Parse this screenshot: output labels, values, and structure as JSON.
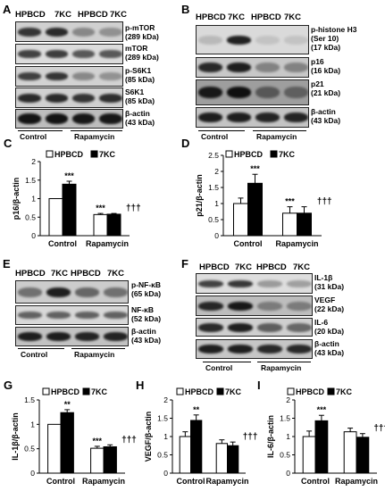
{
  "lane_headers": [
    "HPBCD",
    "7KC",
    "HPBCD",
    "7KC"
  ],
  "group_labels": [
    "Control",
    "Rapamycin"
  ],
  "panels": {
    "A": {
      "letter": "A",
      "labels": [
        "p-mTOR\n(289 kDa)",
        "mTOR\n(289 kDa)",
        "p-S6K1\n(85 kDa)",
        "S6K1\n(85 kDa)",
        "β-actin\n(43 kDa)"
      ]
    },
    "B": {
      "letter": "B",
      "labels": [
        "p-histone H3\n(Ser 10)\n(17 kDa)",
        "p16\n(16 kDa)",
        "p21\n(21 kDa)",
        "β-actin\n(43 kDa)"
      ]
    },
    "E": {
      "letter": "E",
      "labels": [
        "p-NF-κB\n(65 kDa)",
        "NF-κB\n(52 kDa)",
        "β-actin\n(43 kDa)"
      ]
    },
    "F": {
      "letter": "F",
      "labels": [
        "IL-1β\n(31 kDa)",
        "VEGF\n(22 kDa)",
        "IL-6\n(20 kDa)",
        "β-actin\n(43 kDa)"
      ]
    }
  },
  "chart_data": [
    {
      "id": "C",
      "letter": "C",
      "type": "bar",
      "ylabel": "p16/β-actin",
      "ylim": [
        0,
        2
      ],
      "yticks": [
        "0",
        "0.5",
        "1",
        "1.5",
        "2"
      ],
      "categories": [
        "Control",
        "Rapamycin"
      ],
      "series": [
        {
          "name": "HPBCD",
          "values": [
            1.0,
            0.57
          ],
          "err": [
            0,
            0.03
          ],
          "color": "#ffffff"
        },
        {
          "name": "7KC",
          "values": [
            1.39,
            0.58
          ],
          "err": [
            0.08,
            0.02
          ],
          "color": "#000000"
        }
      ],
      "annotations": [
        {
          "text": "***",
          "series": 1,
          "cat": 0
        },
        {
          "text": "***",
          "series": 0,
          "cat": 1
        },
        {
          "text": "†††",
          "series": 1,
          "cat": 1
        }
      ]
    },
    {
      "id": "D",
      "letter": "D",
      "type": "bar",
      "ylabel": "p21/β-actin",
      "ylim": [
        0,
        2.5
      ],
      "yticks": [
        "0",
        "0.5",
        "1",
        "1.5",
        "2",
        "2.5"
      ],
      "categories": [
        "Control",
        "Rapamycin"
      ],
      "series": [
        {
          "name": "HPBCD",
          "values": [
            1.0,
            0.7
          ],
          "err": [
            0.17,
            0.2
          ],
          "color": "#ffffff"
        },
        {
          "name": "7KC",
          "values": [
            1.63,
            0.7
          ],
          "err": [
            0.28,
            0.2
          ],
          "color": "#000000"
        }
      ],
      "annotations": [
        {
          "text": "***",
          "series": 1,
          "cat": 0
        },
        {
          "text": "***",
          "series": 0,
          "cat": 1
        },
        {
          "text": "†††",
          "series": 1,
          "cat": 1
        }
      ]
    },
    {
      "id": "G",
      "letter": "G",
      "type": "bar",
      "ylabel": "IL-1β/β-actin",
      "ylim": [
        0,
        1.5
      ],
      "yticks": [
        "0",
        "0.5",
        "1",
        "1.5"
      ],
      "categories": [
        "Control",
        "Rapamycin"
      ],
      "series": [
        {
          "name": "HPBCD",
          "values": [
            1.0,
            0.51
          ],
          "err": [
            0,
            0.04
          ],
          "color": "#ffffff"
        },
        {
          "name": "7KC",
          "values": [
            1.24,
            0.54
          ],
          "err": [
            0.06,
            0.04
          ],
          "color": "#000000"
        }
      ],
      "annotations": [
        {
          "text": "**",
          "series": 1,
          "cat": 0
        },
        {
          "text": "***",
          "series": 0,
          "cat": 1
        },
        {
          "text": "†††",
          "series": 1,
          "cat": 1
        }
      ]
    },
    {
      "id": "H",
      "letter": "H",
      "type": "bar",
      "ylabel": "VEGF/β-actin",
      "ylim": [
        0,
        2
      ],
      "yticks": [
        "0",
        "0.5",
        "1",
        "1.5",
        "2"
      ],
      "categories": [
        "Control",
        "Rapamycin"
      ],
      "series": [
        {
          "name": "HPBCD",
          "values": [
            1.0,
            0.81
          ],
          "err": [
            0.13,
            0.1
          ],
          "color": "#ffffff"
        },
        {
          "name": "7KC",
          "values": [
            1.44,
            0.75
          ],
          "err": [
            0.15,
            0.1
          ],
          "color": "#000000"
        }
      ],
      "annotations": [
        {
          "text": "**",
          "series": 1,
          "cat": 0
        },
        {
          "text": "†††",
          "series": 1,
          "cat": 1
        }
      ]
    },
    {
      "id": "I",
      "letter": "I",
      "type": "bar",
      "ylabel": "IL-6/β-actin",
      "ylim": [
        0,
        2
      ],
      "yticks": [
        "0",
        "0.5",
        "1",
        "1.5",
        "2"
      ],
      "categories": [
        "Control",
        "Rapamycin"
      ],
      "series": [
        {
          "name": "HPBCD",
          "values": [
            1.0,
            1.13
          ],
          "err": [
            0.15,
            0.1
          ],
          "color": "#ffffff"
        },
        {
          "name": "7KC",
          "values": [
            1.43,
            0.98
          ],
          "err": [
            0.15,
            0.1
          ],
          "color": "#000000"
        }
      ],
      "annotations": [
        {
          "text": "***",
          "series": 1,
          "cat": 0
        },
        {
          "text": "†††",
          "series": 1,
          "cat": 1
        }
      ]
    }
  ]
}
